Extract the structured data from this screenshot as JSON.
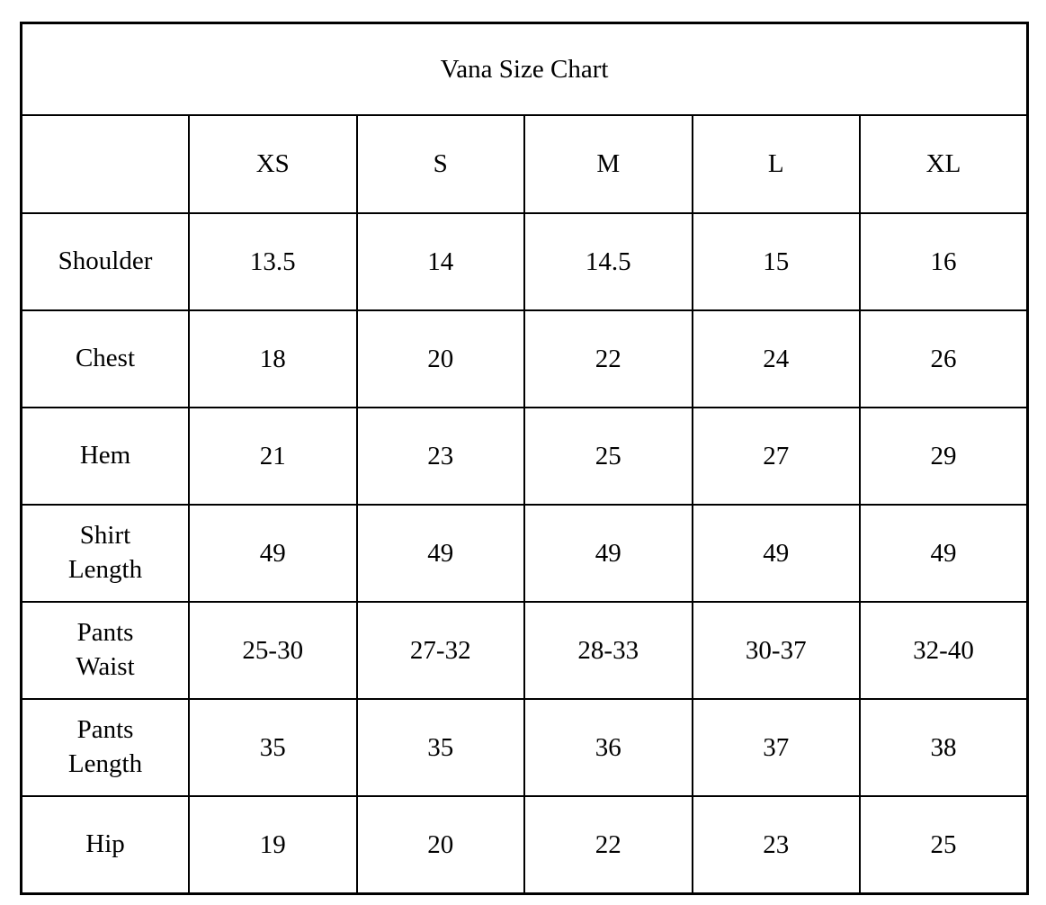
{
  "chart_data": {
    "type": "table",
    "title": "Vana Size Chart",
    "column_headers": [
      "",
      "XS",
      "S",
      "M",
      "L",
      "XL"
    ],
    "rows": [
      {
        "label": "Shoulder",
        "values": [
          "13.5",
          "14",
          "14.5",
          "15",
          "16"
        ]
      },
      {
        "label": "Chest",
        "values": [
          "18",
          "20",
          "22",
          "24",
          "26"
        ]
      },
      {
        "label": "Hem",
        "values": [
          "21",
          "23",
          "25",
          "27",
          "29"
        ]
      },
      {
        "label": "Shirt Length",
        "values": [
          "49",
          "49",
          "49",
          "49",
          "49"
        ]
      },
      {
        "label": "Pants Waist",
        "values": [
          "25-30",
          "27-32",
          "28-33",
          "30-37",
          "32-40"
        ]
      },
      {
        "label": "Pants Length",
        "values": [
          "35",
          "35",
          "36",
          "37",
          "38"
        ]
      },
      {
        "label": "Hip",
        "values": [
          "19",
          "20",
          "22",
          "23",
          "25"
        ]
      }
    ],
    "layout": {
      "text_color": "#000000",
      "border_color": "#000000",
      "background_color": "#ffffff",
      "grid": "on"
    }
  }
}
